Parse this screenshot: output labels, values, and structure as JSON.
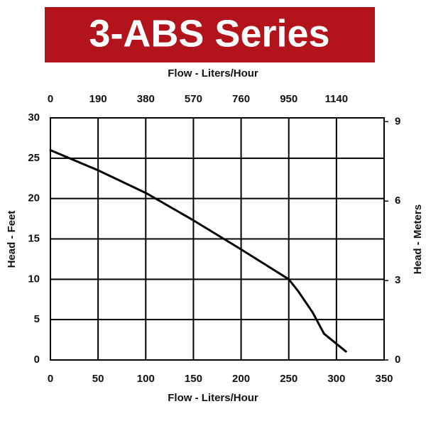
{
  "chart_data": {
    "type": "line",
    "title": "3-ABS Series",
    "title_color": "#b3141c",
    "xlabel": "Flow - Liters/Hour",
    "x2label": "Flow - Liters/Hour",
    "ylabel": "Head - Feet",
    "y2label": "Head - Meters",
    "x": [
      0,
      50,
      100,
      150,
      200,
      250,
      260,
      275,
      287,
      310
    ],
    "series": [
      {
        "color": "#000000",
        "values": [
          26,
          23.5,
          20.7,
          17.3,
          13.7,
          10,
          8.5,
          5.9,
          3.25,
          1.05
        ]
      }
    ],
    "xlim": [
      0,
      350
    ],
    "xticks": [
      0,
      50,
      100,
      150,
      200,
      250,
      300,
      350
    ],
    "x2lim": [
      0,
      1330
    ],
    "x2ticks": [
      0,
      190,
      380,
      570,
      760,
      950,
      1140
    ],
    "ylim": [
      0,
      30
    ],
    "yticks": [
      0,
      5,
      10,
      15,
      20,
      25,
      30
    ],
    "y2lim": [
      0,
      9.144
    ],
    "y2ticks": [
      0,
      3,
      6,
      9
    ],
    "grid": true
  }
}
